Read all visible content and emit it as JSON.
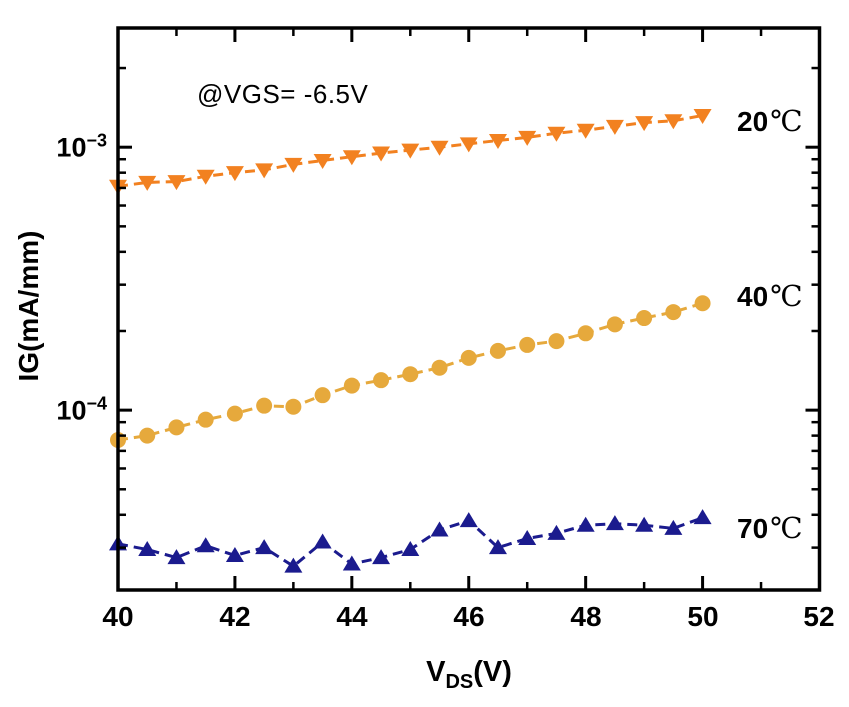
{
  "figure": {
    "annotation": "@VGS= -6.5V",
    "y_axis_label": "IG(mA/mm)",
    "x_axis_label": {
      "main": "V",
      "sub": "DS",
      "rest": "(V)"
    },
    "y_tick_labels": [
      {
        "base": "10",
        "exp": "−3"
      },
      {
        "base": "10",
        "exp": "−4"
      }
    ],
    "x_tick_labels": [
      "40",
      "42",
      "44",
      "46",
      "48",
      "50",
      "52"
    ]
  },
  "chart_data": {
    "type": "line",
    "title": "",
    "xlabel": "V_DS (V)",
    "ylabel": "IG (mA/mm)",
    "annotation": "@VGS= -6.5V",
    "grid": false,
    "legend_position": "inline-right",
    "x_axis": {
      "min": 40,
      "max": 52,
      "major_ticks": [
        40,
        42,
        44,
        46,
        48,
        50,
        52
      ],
      "minor_ticks": [
        41,
        43,
        45,
        47,
        49,
        51
      ]
    },
    "y_axis": {
      "scale": "log",
      "min": 2.07e-05,
      "max": 0.00284,
      "labeled_decades": [
        0.001,
        0.0001
      ],
      "minor_decades_exponents": [
        -3,
        -4,
        -5
      ]
    },
    "x": [
      40,
      40.5,
      41,
      41.5,
      42,
      42.5,
      43,
      43.5,
      44,
      44.5,
      45,
      45.5,
      46,
      46.5,
      47,
      47.5,
      48,
      48.5,
      49,
      49.5,
      50
    ],
    "series": [
      {
        "name": "20℃",
        "label": "20",
        "unit": "℃",
        "color": "#F28120",
        "marker": "triangle-down",
        "values": [
          0.00071,
          0.000735,
          0.00074,
          0.000775,
          0.0008,
          0.00082,
          0.00086,
          0.00089,
          0.00092,
          0.00095,
          0.000975,
          0.001,
          0.00103,
          0.00106,
          0.00109,
          0.00113,
          0.00116,
          0.0012,
          0.00124,
          0.00126,
          0.00132
        ]
      },
      {
        "name": "40℃",
        "label": "40",
        "unit": "℃",
        "color": "#E6A93C",
        "marker": "circle",
        "values": [
          7.7e-05,
          8e-05,
          8.6e-05,
          9.2e-05,
          9.7e-05,
          0.000104,
          0.000103,
          0.000114,
          0.000124,
          0.00013,
          0.000137,
          0.000145,
          0.000158,
          0.000168,
          0.000177,
          0.000183,
          0.000196,
          0.000212,
          0.000224,
          0.000236,
          0.000255
        ]
      },
      {
        "name": "70℃",
        "label": "70",
        "unit": "℃",
        "color": "#1B1B8E",
        "marker": "triangle-up",
        "values": [
          3.1e-05,
          2.95e-05,
          2.75e-05,
          3.05e-05,
          2.8e-05,
          3e-05,
          2.55e-05,
          3.15e-05,
          2.6e-05,
          2.75e-05,
          2.95e-05,
          3.5e-05,
          3.8e-05,
          3e-05,
          3.25e-05,
          3.4e-05,
          3.65e-05,
          3.7e-05,
          3.65e-05,
          3.55e-05,
          3.9e-05
        ]
      }
    ]
  }
}
